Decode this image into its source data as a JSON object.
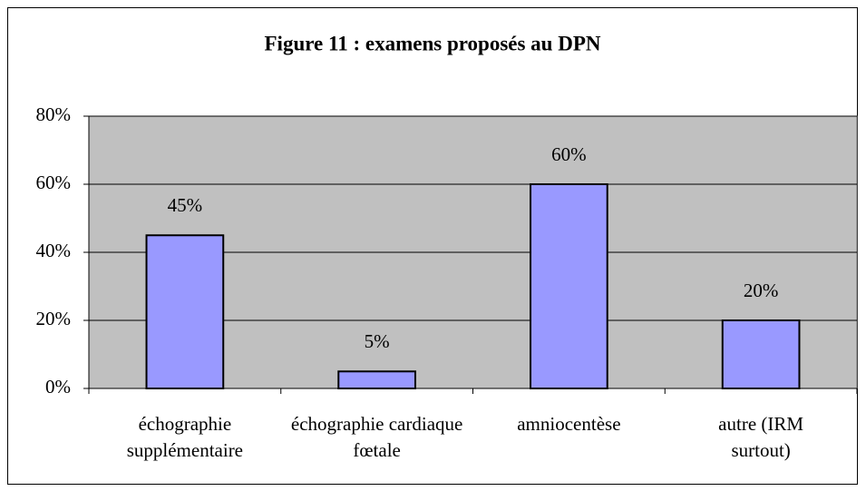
{
  "chart_data": {
    "type": "bar",
    "title": "Figure 11 : examens proposés au DPN",
    "categories": [
      "échographie supplémentaire",
      "échographie cardiaque fœtale",
      "amniocentèse",
      "autre (IRM surtout)"
    ],
    "values": [
      45,
      5,
      60,
      20
    ],
    "value_labels": [
      "45%",
      "5%",
      "60%",
      "20%"
    ],
    "color": "#9999ff",
    "ylim": [
      0,
      80
    ],
    "yticks": [
      {
        "value": 0,
        "label": "0%"
      },
      {
        "value": 20,
        "label": "20%"
      },
      {
        "value": 40,
        "label": "40%"
      },
      {
        "value": 60,
        "label": "60%"
      },
      {
        "value": 80,
        "label": "80%"
      }
    ],
    "grid": true
  }
}
